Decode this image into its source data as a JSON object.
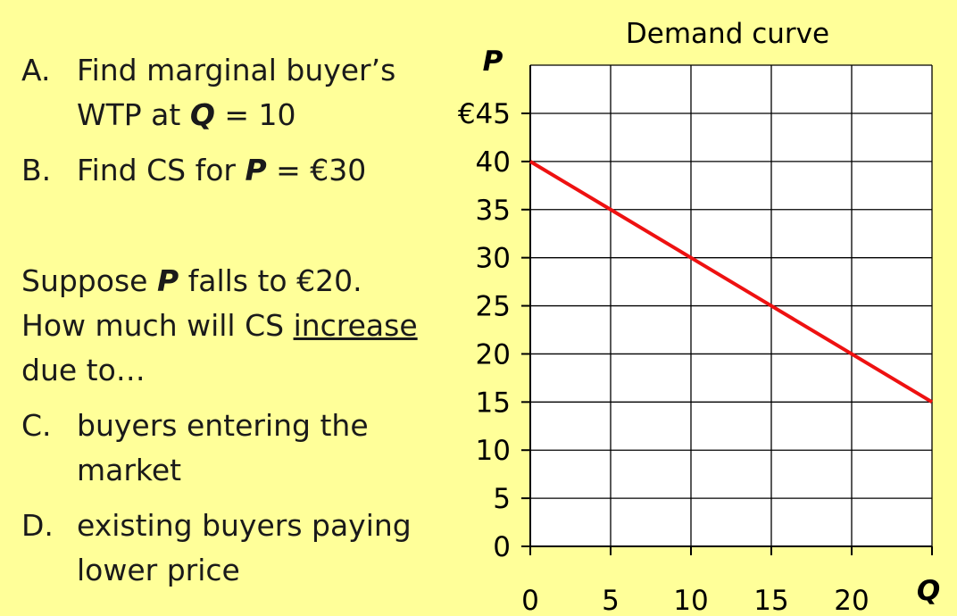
{
  "questions": {
    "a_letter": "A.",
    "a_line1": "Find marginal buyer’s",
    "a_line2_prefix": "WTP at ",
    "a_line2_var": "Q",
    "a_line2_suffix": " = 10",
    "b_letter": "B.",
    "b_prefix": "Find CS for ",
    "b_var": "P",
    "b_suffix": " = €30",
    "suppose_prefix": "Suppose ",
    "suppose_var": "P",
    "suppose_suffix": " falls to €20.",
    "howmuch_prefix": "How much will CS ",
    "howmuch_underlined": "increase",
    "dueto": "due to…",
    "c_letter": "C.",
    "c_line1": "buyers entering the",
    "c_line2": "market",
    "d_letter": "D.",
    "d_line1": "existing buyers paying",
    "d_line2": "lower price"
  },
  "chart_data": {
    "type": "line",
    "title": "Demand curve",
    "xlabel": "Q",
    "ylabel": "P",
    "xlim": [
      0,
      25
    ],
    "ylim": [
      0,
      45
    ],
    "x_ticks": [
      0,
      5,
      10,
      15,
      20
    ],
    "x_tick_labels": [
      "0",
      "5",
      "10",
      "15",
      "20"
    ],
    "y_ticks": [
      0,
      5,
      10,
      15,
      20,
      25,
      30,
      35,
      40,
      45
    ],
    "y_tick_labels": [
      "0",
      "5",
      "10",
      "15",
      "20",
      "25",
      "30",
      "35",
      "40",
      "€45"
    ],
    "grid": true,
    "series": [
      {
        "x": [
          0,
          5,
          10,
          15,
          20,
          25
        ],
        "y": [
          40,
          35,
          30,
          25,
          20,
          15
        ]
      }
    ],
    "colors": {
      "line": "#ee1111",
      "grid": "#000000",
      "plot_bg": "#ffffff"
    }
  }
}
